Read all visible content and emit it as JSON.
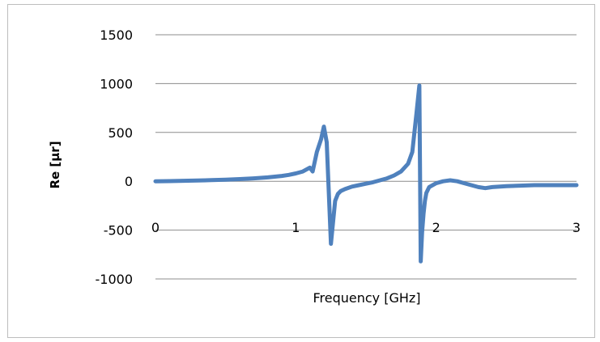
{
  "chart_data": {
    "type": "line",
    "title": "",
    "xlabel": "Frequency [GHz]",
    "ylabel": "Re [µr]",
    "xlim": [
      0,
      3
    ],
    "ylim": [
      -1000,
      1500
    ],
    "x_ticks": [
      "0",
      "1",
      "2",
      "3"
    ],
    "y_ticks": [
      "1500",
      "1000",
      "500",
      "0",
      "-500",
      "-1000"
    ],
    "grid": "horizontal",
    "legend": "none",
    "series_color": "#4f81bd",
    "series": [
      {
        "x": [
          0,
          0.1,
          0.2,
          0.3,
          0.4,
          0.5,
          0.6,
          0.7,
          0.8,
          0.9,
          0.95,
          1.0,
          1.05,
          1.1,
          1.12,
          1.15,
          1.18,
          1.2,
          1.22,
          1.25,
          1.28,
          1.3,
          1.32,
          1.35,
          1.4,
          1.45,
          1.5,
          1.55,
          1.6,
          1.65,
          1.7,
          1.75,
          1.8,
          1.83,
          1.86,
          1.88,
          1.89,
          1.9,
          1.91,
          1.92,
          1.93,
          1.95,
          2.0,
          2.05,
          2.1,
          2.15,
          2.2,
          2.25,
          2.3,
          2.35,
          2.4,
          2.5,
          2.6,
          2.7,
          2.8,
          2.9,
          3.0
        ],
        "y": [
          0,
          2,
          5,
          8,
          12,
          16,
          22,
          30,
          40,
          55,
          65,
          80,
          100,
          140,
          100,
          300,
          430,
          560,
          400,
          -640,
          -200,
          -130,
          -100,
          -80,
          -55,
          -40,
          -25,
          -10,
          10,
          30,
          60,
          100,
          180,
          300,
          700,
          980,
          -820,
          -520,
          -330,
          -200,
          -120,
          -60,
          -20,
          0,
          10,
          0,
          -20,
          -40,
          -60,
          -70,
          -60,
          -50,
          -45,
          -40,
          -40,
          -40,
          -40
        ]
      }
    ]
  }
}
